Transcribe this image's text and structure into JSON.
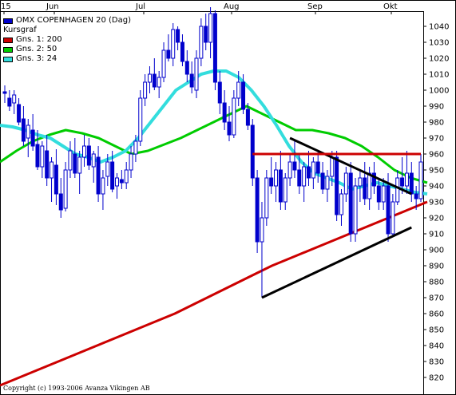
{
  "chart_data": {
    "type": "candlestick",
    "title": "OMX COPENHAGEN 20 (Dag)",
    "legend": [
      {
        "label": "OMX COPENHAGEN 20 (Dag)",
        "color": "#0000cc",
        "swatch": true
      },
      {
        "label": "Kursgraf",
        "color": "",
        "swatch": false
      },
      {
        "label": "Gns. 1: 200",
        "color": "#cc0000",
        "swatch": true
      },
      {
        "label": "Gns. 2: 50",
        "color": "#00cc00",
        "swatch": true
      },
      {
        "label": "Gns. 3: 24",
        "color": "#33dddd",
        "swatch": true
      }
    ],
    "legend_position": "top-left",
    "x_tick_labels": [
      "15",
      "Jun",
      "Jul",
      "Aug",
      "Sep",
      "Okt"
    ],
    "y_tick_labels": [
      1040,
      1030,
      1020,
      1010,
      1000,
      990,
      980,
      970,
      960,
      950,
      940,
      930,
      920,
      910,
      900,
      890,
      880,
      870,
      860,
      850,
      840,
      830,
      820
    ],
    "ylim": [
      814,
      1053
    ],
    "grid": false,
    "candles": [
      {
        "o": 999,
        "h": 1003,
        "l": 992,
        "c": 998
      },
      {
        "o": 995,
        "h": 1000,
        "l": 987,
        "c": 990
      },
      {
        "o": 992,
        "h": 1000,
        "l": 985,
        "c": 997
      },
      {
        "o": 991,
        "h": 995,
        "l": 978,
        "c": 980
      },
      {
        "o": 982,
        "h": 990,
        "l": 965,
        "c": 968
      },
      {
        "o": 970,
        "h": 982,
        "l": 958,
        "c": 978
      },
      {
        "o": 975,
        "h": 985,
        "l": 962,
        "c": 965
      },
      {
        "o": 966,
        "h": 975,
        "l": 950,
        "c": 952
      },
      {
        "o": 952,
        "h": 968,
        "l": 945,
        "c": 965
      },
      {
        "o": 962,
        "h": 972,
        "l": 940,
        "c": 945
      },
      {
        "o": 945,
        "h": 958,
        "l": 930,
        "c": 955
      },
      {
        "o": 953,
        "h": 963,
        "l": 928,
        "c": 935
      },
      {
        "o": 935,
        "h": 945,
        "l": 920,
        "c": 925
      },
      {
        "o": 926,
        "h": 955,
        "l": 924,
        "c": 950
      },
      {
        "o": 950,
        "h": 968,
        "l": 945,
        "c": 962
      },
      {
        "o": 960,
        "h": 970,
        "l": 945,
        "c": 948
      },
      {
        "o": 948,
        "h": 962,
        "l": 935,
        "c": 958
      },
      {
        "o": 958,
        "h": 972,
        "l": 952,
        "c": 965
      },
      {
        "o": 965,
        "h": 970,
        "l": 950,
        "c": 953
      },
      {
        "o": 952,
        "h": 962,
        "l": 942,
        "c": 960
      },
      {
        "o": 958,
        "h": 965,
        "l": 930,
        "c": 935
      },
      {
        "o": 935,
        "h": 950,
        "l": 925,
        "c": 945
      },
      {
        "o": 946,
        "h": 960,
        "l": 940,
        "c": 955
      },
      {
        "o": 955,
        "h": 962,
        "l": 936,
        "c": 938
      },
      {
        "o": 940,
        "h": 948,
        "l": 932,
        "c": 945
      },
      {
        "o": 944,
        "h": 950,
        "l": 938,
        "c": 942
      },
      {
        "o": 942,
        "h": 955,
        "l": 938,
        "c": 950
      },
      {
        "o": 950,
        "h": 965,
        "l": 945,
        "c": 960
      },
      {
        "o": 960,
        "h": 972,
        "l": 955,
        "c": 968
      },
      {
        "o": 968,
        "h": 1000,
        "l": 965,
        "c": 995
      },
      {
        "o": 995,
        "h": 1010,
        "l": 990,
        "c": 1005
      },
      {
        "o": 1005,
        "h": 1015,
        "l": 998,
        "c": 1010
      },
      {
        "o": 1010,
        "h": 1020,
        "l": 1000,
        "c": 1002
      },
      {
        "o": 1002,
        "h": 1012,
        "l": 995,
        "c": 1008
      },
      {
        "o": 1008,
        "h": 1030,
        "l": 1005,
        "c": 1025
      },
      {
        "o": 1025,
        "h": 1035,
        "l": 1018,
        "c": 1020
      },
      {
        "o": 1020,
        "h": 1042,
        "l": 1015,
        "c": 1038
      },
      {
        "o": 1038,
        "h": 1040,
        "l": 1025,
        "c": 1030
      },
      {
        "o": 1030,
        "h": 1035,
        "l": 1015,
        "c": 1018
      },
      {
        "o": 1018,
        "h": 1025,
        "l": 1005,
        "c": 1010
      },
      {
        "o": 1010,
        "h": 1018,
        "l": 998,
        "c": 1002
      },
      {
        "o": 1000,
        "h": 1025,
        "l": 995,
        "c": 1020
      },
      {
        "o": 1020,
        "h": 1045,
        "l": 1015,
        "c": 1040
      },
      {
        "o": 1040,
        "h": 1048,
        "l": 1025,
        "c": 1030
      },
      {
        "o": 1030,
        "h": 1052,
        "l": 1020,
        "c": 1048
      },
      {
        "o": 1048,
        "h": 1050,
        "l": 1000,
        "c": 1005
      },
      {
        "o": 1005,
        "h": 1012,
        "l": 985,
        "c": 992
      },
      {
        "o": 992,
        "h": 1000,
        "l": 975,
        "c": 980
      },
      {
        "o": 980,
        "h": 990,
        "l": 968,
        "c": 972
      },
      {
        "o": 972,
        "h": 1000,
        "l": 970,
        "c": 995
      },
      {
        "o": 995,
        "h": 1012,
        "l": 990,
        "c": 1005
      },
      {
        "o": 1005,
        "h": 1010,
        "l": 985,
        "c": 988
      },
      {
        "o": 988,
        "h": 992,
        "l": 975,
        "c": 978
      },
      {
        "o": 978,
        "h": 982,
        "l": 940,
        "c": 945
      },
      {
        "o": 945,
        "h": 950,
        "l": 898,
        "c": 905
      },
      {
        "o": 905,
        "h": 930,
        "l": 870,
        "c": 920
      },
      {
        "o": 920,
        "h": 950,
        "l": 915,
        "c": 945
      },
      {
        "o": 945,
        "h": 958,
        "l": 935,
        "c": 940
      },
      {
        "o": 940,
        "h": 955,
        "l": 930,
        "c": 950
      },
      {
        "o": 950,
        "h": 962,
        "l": 925,
        "c": 930
      },
      {
        "o": 930,
        "h": 948,
        "l": 925,
        "c": 945
      },
      {
        "o": 945,
        "h": 960,
        "l": 940,
        "c": 955
      },
      {
        "o": 955,
        "h": 968,
        "l": 945,
        "c": 950
      },
      {
        "o": 950,
        "h": 960,
        "l": 935,
        "c": 940
      },
      {
        "o": 940,
        "h": 955,
        "l": 930,
        "c": 952
      },
      {
        "o": 952,
        "h": 962,
        "l": 940,
        "c": 945
      },
      {
        "o": 945,
        "h": 958,
        "l": 938,
        "c": 955
      },
      {
        "o": 955,
        "h": 962,
        "l": 942,
        "c": 948
      },
      {
        "o": 948,
        "h": 955,
        "l": 935,
        "c": 938
      },
      {
        "o": 938,
        "h": 950,
        "l": 930,
        "c": 946
      },
      {
        "o": 946,
        "h": 962,
        "l": 940,
        "c": 958
      },
      {
        "o": 958,
        "h": 962,
        "l": 918,
        "c": 922
      },
      {
        "o": 922,
        "h": 938,
        "l": 915,
        "c": 935
      },
      {
        "o": 935,
        "h": 952,
        "l": 930,
        "c": 948
      },
      {
        "o": 948,
        "h": 955,
        "l": 905,
        "c": 910
      },
      {
        "o": 910,
        "h": 945,
        "l": 905,
        "c": 940
      },
      {
        "o": 940,
        "h": 950,
        "l": 930,
        "c": 945
      },
      {
        "o": 945,
        "h": 955,
        "l": 928,
        "c": 932
      },
      {
        "o": 932,
        "h": 952,
        "l": 925,
        "c": 948
      },
      {
        "o": 948,
        "h": 955,
        "l": 935,
        "c": 940
      },
      {
        "o": 940,
        "h": 945,
        "l": 925,
        "c": 930
      },
      {
        "o": 930,
        "h": 945,
        "l": 925,
        "c": 940
      },
      {
        "o": 940,
        "h": 948,
        "l": 905,
        "c": 910
      },
      {
        "o": 910,
        "h": 935,
        "l": 908,
        "c": 930
      },
      {
        "o": 930,
        "h": 950,
        "l": 928,
        "c": 945
      },
      {
        "o": 945,
        "h": 958,
        "l": 935,
        "c": 940
      },
      {
        "o": 940,
        "h": 962,
        "l": 935,
        "c": 948
      },
      {
        "o": 948,
        "h": 955,
        "l": 930,
        "c": 935
      },
      {
        "o": 935,
        "h": 940,
        "l": 925,
        "c": 932
      },
      {
        "o": 932,
        "h": 960,
        "l": 930,
        "c": 955
      }
    ],
    "moving_averages": [
      {
        "name": "Gns. 1: 200",
        "color": "#cc0000",
        "values": [
          815,
          820,
          825,
          830,
          835,
          840,
          845,
          850,
          855,
          860,
          866,
          872,
          878,
          884,
          890,
          895,
          900,
          905,
          910,
          915,
          920,
          925,
          930
        ]
      },
      {
        "name": "Gns. 2: 50",
        "color": "#00cc00",
        "values": [
          955,
          962,
          968,
          972,
          975,
          973,
          970,
          965,
          960,
          962,
          966,
          970,
          975,
          980,
          985,
          990,
          985,
          980,
          975,
          975,
          973,
          970,
          965,
          958,
          950,
          945,
          942
        ]
      },
      {
        "name": "Gns. 3: 24",
        "color": "#33dddd",
        "values": [
          978,
          977,
          975,
          972,
          970,
          965,
          960,
          958,
          955,
          958,
          962,
          970,
          980,
          990,
          1000,
          1005,
          1010,
          1012,
          1012,
          1008,
          1000,
          990,
          978,
          965,
          955,
          948,
          945,
          942,
          938,
          940,
          942,
          940,
          938,
          936,
          935
        ]
      }
    ],
    "trendlines": [
      {
        "color": "#000000",
        "points": [
          [
            55,
            870
          ],
          [
            87,
            914
          ]
        ]
      },
      {
        "color": "#000000",
        "points": [
          [
            61,
            970
          ],
          [
            87,
            935
          ]
        ]
      },
      {
        "color": "#cc0000",
        "points": [
          [
            53,
            960
          ],
          [
            89,
            960
          ]
        ]
      }
    ]
  },
  "copyright": "Copyright (c) 1993-2006 Avanza Vikingen AB"
}
